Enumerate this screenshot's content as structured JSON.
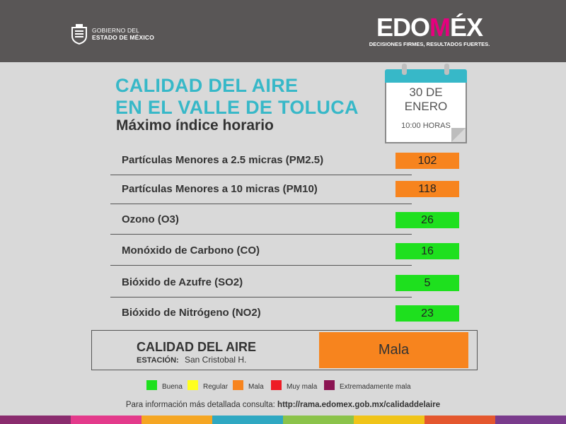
{
  "header": {
    "gov_line1": "GOBIERNO DEL",
    "gov_line2": "ESTADO DE MÉXICO",
    "brand_part1": "EDO",
    "brand_part2": "M",
    "brand_part3": "ÉX",
    "brand_tagline": "DECISIONES FIRMES, RESULTADOS FUERTES."
  },
  "title": {
    "line1": "CALIDAD DEL AIRE",
    "line2": "EN EL VALLE DE TOLUCA",
    "subtitle": "Máximo índice horario"
  },
  "calendar": {
    "date_line1": "30 DE",
    "date_line2": "ENERO",
    "time": "10:00 HORAS"
  },
  "pollutants": [
    {
      "label": "Partículas Menores a 2.5 micras (PM2.5)",
      "value": "102",
      "level": "Mala"
    },
    {
      "label": "Partículas Menores a 10 micras (PM10)",
      "value": "118",
      "level": "Mala"
    },
    {
      "label": "Ozono (O3)",
      "value": "26",
      "level": "Buena"
    },
    {
      "label": "Monóxido de Carbono (CO)",
      "value": "16",
      "level": "Buena"
    },
    {
      "label": "Bióxido de Azufre (SO2)",
      "value": "5",
      "level": "Buena"
    },
    {
      "label": "Bióxido de Nitrógeno (NO2)",
      "value": "23",
      "level": "Buena"
    }
  ],
  "summary": {
    "title": "CALIDAD DEL AIRE",
    "station_label": "ESTACIÓN:",
    "station": "San Cristobal H.",
    "status": "Mala"
  },
  "legend": [
    {
      "label": "Buena",
      "color": "#1ee01e"
    },
    {
      "label": "Regular",
      "color": "#ffff1e"
    },
    {
      "label": "Mala",
      "color": "#f7841e"
    },
    {
      "label": "Muy mala",
      "color": "#ee1c25"
    },
    {
      "label": "Extremadamente mala",
      "color": "#8b1452"
    }
  ],
  "footer": {
    "prefix": "Para información más detallada consulta:",
    "url": "http://rama.edomex.gob.mx/calidaddelaire"
  },
  "colors": {
    "accent": "#37b8c8",
    "header_bg": "#595656",
    "good": "#1ee01e",
    "bad": "#f7841e"
  }
}
